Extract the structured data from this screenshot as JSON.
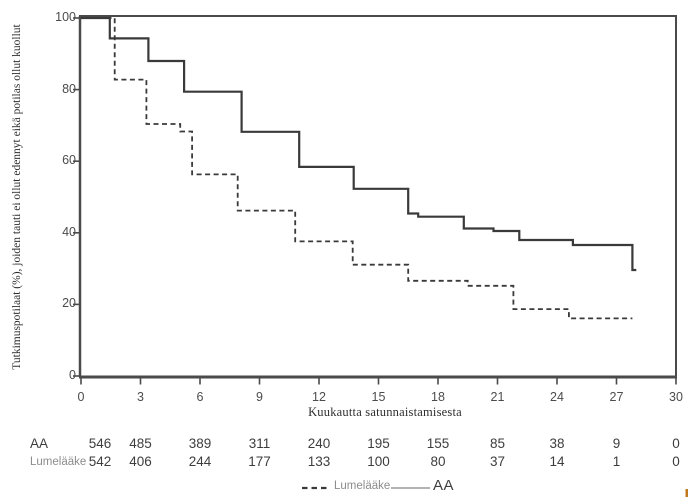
{
  "figure_title": "",
  "colors": {
    "curve": "#3a3a3a",
    "axis": "#4a4a4a",
    "tick_text": "#4c4c4c",
    "dark_text": "#3d3d3d",
    "muted_text": "#8c8c8c",
    "legend_solid_sample": "#9a9a9a",
    "artifact_orange": "#c07a1e"
  },
  "chart_data": {
    "type": "line",
    "subtype": "kaplan_meier_step",
    "title": "",
    "xlabel": "Kuukautta satunnaistamisesta",
    "ylabel": "Tutkimuspotilaat (%), joiden tauti ei ollut edennyt eikä potilas ollut kuollut",
    "xlim": [
      0,
      30
    ],
    "ylim": [
      0,
      100
    ],
    "x_ticks": [
      0,
      3,
      6,
      9,
      12,
      15,
      18,
      21,
      24,
      27,
      30
    ],
    "y_ticks": [
      0,
      20,
      40,
      60,
      80,
      100
    ],
    "grid": false,
    "legend_position": "bottom-center",
    "series": [
      {
        "name": "AA",
        "line_style": "solid",
        "color": "#3a3a3a",
        "points_pct": [
          [
            0,
            100
          ],
          [
            1.45,
            100
          ],
          [
            1.45,
            94.3
          ],
          [
            3.4,
            94.3
          ],
          [
            3.4,
            88
          ],
          [
            5.2,
            88
          ],
          [
            5.2,
            79.4
          ],
          [
            8.1,
            79.4
          ],
          [
            8.1,
            68.2
          ],
          [
            11,
            68.2
          ],
          [
            11,
            58.4
          ],
          [
            13.75,
            58.4
          ],
          [
            13.75,
            52.3
          ],
          [
            16.5,
            52.3
          ],
          [
            16.5,
            45.4
          ],
          [
            17,
            45.4
          ],
          [
            17,
            44.5
          ],
          [
            19.3,
            44.5
          ],
          [
            19.3,
            41.2
          ],
          [
            20.8,
            41.2
          ],
          [
            20.8,
            40.5
          ],
          [
            22.1,
            40.5
          ],
          [
            22.1,
            38
          ],
          [
            24.8,
            38
          ],
          [
            24.8,
            36.6
          ],
          [
            27.8,
            36.6
          ],
          [
            27.8,
            29.6
          ],
          [
            28,
            29.6
          ]
        ]
      },
      {
        "name": "Lumelääke",
        "line_style": "dashed",
        "color": "#3a3a3a",
        "points_pct": [
          [
            0,
            100
          ],
          [
            1.7,
            100
          ],
          [
            1.7,
            82.8
          ],
          [
            3.3,
            82.8
          ],
          [
            3.3,
            70.4
          ],
          [
            5,
            70.4
          ],
          [
            5,
            68.3
          ],
          [
            5.6,
            68.3
          ],
          [
            5.6,
            56.3
          ],
          [
            7.9,
            56.3
          ],
          [
            7.9,
            46.2
          ],
          [
            10.8,
            46.2
          ],
          [
            10.8,
            37.6
          ],
          [
            13.7,
            37.6
          ],
          [
            13.7,
            31.1
          ],
          [
            16.5,
            31.1
          ],
          [
            16.5,
            26.6
          ],
          [
            19.5,
            26.6
          ],
          [
            19.5,
            25.2
          ],
          [
            21.8,
            25.2
          ],
          [
            21.8,
            18.7
          ],
          [
            24.6,
            18.7
          ],
          [
            24.6,
            16.1
          ],
          [
            27.8,
            16.1
          ]
        ]
      }
    ],
    "number_at_risk": {
      "months": [
        0,
        3,
        6,
        9,
        12,
        15,
        18,
        21,
        24,
        27,
        30
      ],
      "rows": [
        {
          "label": "AA",
          "values": [
            546,
            485,
            389,
            311,
            240,
            195,
            155,
            85,
            38,
            9,
            0
          ]
        },
        {
          "label": "Lumelääke",
          "values": [
            542,
            406,
            244,
            177,
            133,
            100,
            80,
            37,
            14,
            1,
            0
          ]
        }
      ]
    }
  },
  "legend": {
    "dashed_label": "Lumelääke",
    "solid_label": "AA"
  }
}
